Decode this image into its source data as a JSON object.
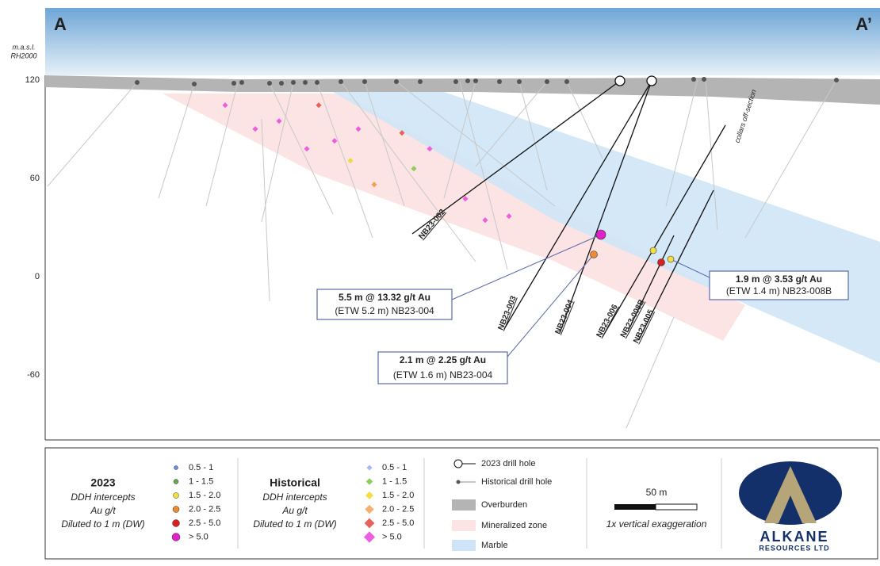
{
  "section": {
    "start": "A",
    "end": "A’",
    "axis_label": [
      "m.a.s.l.",
      "RH2000"
    ],
    "yticks": [
      120,
      60,
      0,
      -60
    ],
    "off_section_note": "collars off-section"
  },
  "holes": [
    "NB23-002",
    "NB23-003",
    "NB23-004",
    "NB23-006",
    "NB23-008B",
    "NB23-005"
  ],
  "annotations": [
    {
      "title": "5.5 m @ 13.32 g/t Au",
      "detail": "(ETW 5.2 m) NB23-004"
    },
    {
      "title": "2.1 m @ 2.25 g/t Au",
      "detail": "(ETW 1.6 m) NB23-004"
    },
    {
      "title": "1.9 m @ 3.53 g/t Au",
      "detail": "(ETW 1.4 m) NB23-008B"
    }
  ],
  "legend": {
    "recent": {
      "title": "2023",
      "lines": [
        "DDH intercepts",
        "Au g/t",
        "Diluted to 1 m (DW)"
      ],
      "classes": [
        "0.5 - 1",
        "1 - 1.5",
        "1.5 - 2.0",
        "2.0 - 2.5",
        "2.5 - 5.0",
        "> 5.0"
      ]
    },
    "historical": {
      "title": "Historical",
      "lines": [
        "DDH intercepts",
        "Au g/t",
        "Diluted to 1 m (DW)"
      ],
      "classes": [
        "0.5 - 1",
        "1 - 1.5",
        "1.5 - 2.0",
        "2.0 - 2.5",
        "2.5 - 5.0",
        "> 5.0"
      ]
    },
    "features": [
      "2023 drill hole",
      "Historical drill hole",
      "Overburden",
      "Mineralized zone",
      "Marble"
    ],
    "scale": "50 m",
    "exaggeration": "1x vertical exaggeration"
  },
  "logo": {
    "name": "ALKANE",
    "sub": "RESOURCES LTD"
  }
}
